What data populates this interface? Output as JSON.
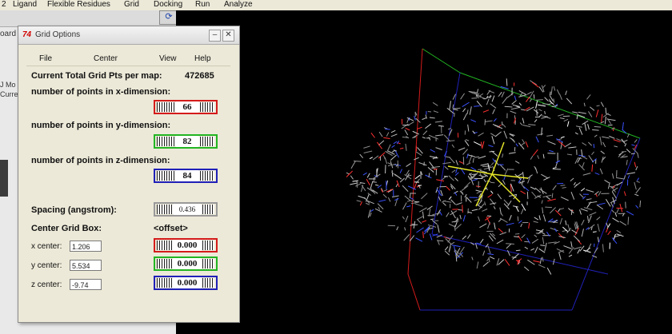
{
  "menubar": {
    "items": [
      "2",
      "Ligand",
      "Flexible Residues",
      "Grid",
      "Docking",
      "Run",
      "Analyze"
    ]
  },
  "left_app": {
    "tab_text": "oard",
    "small_text_1": "J Mo",
    "small_text_2": "Curre"
  },
  "dialog": {
    "title": "Grid Options",
    "menu": [
      "File",
      "Center",
      "View",
      "Help"
    ],
    "total_label": "Current Total Grid Pts per map:",
    "total_value": "472685",
    "x_dim_label": "number of points in x-dimension:",
    "x_dim_value": "66",
    "y_dim_label": "number of points in y-dimension:",
    "y_dim_value": "82",
    "z_dim_label": "number of points in z-dimension:",
    "z_dim_value": "84",
    "spacing_label": "Spacing (angstrom):",
    "spacing_value": "0.436",
    "center_label": "Center Grid Box:",
    "offset_label": "<offset>",
    "x_center_label": "x center:",
    "x_center_value": "1.206",
    "x_offset_value": "0.000",
    "y_center_label": "y center:",
    "y_center_value": "5.534",
    "y_offset_value": "0.000",
    "z_center_label": "z center:",
    "z_center_value": "-9.74",
    "z_offset_value": "0.000"
  },
  "colors": {
    "x_axis": "#d41b1b",
    "y_axis": "#22b522",
    "z_axis": "#2020b8",
    "viewer_bg": "#000000"
  }
}
